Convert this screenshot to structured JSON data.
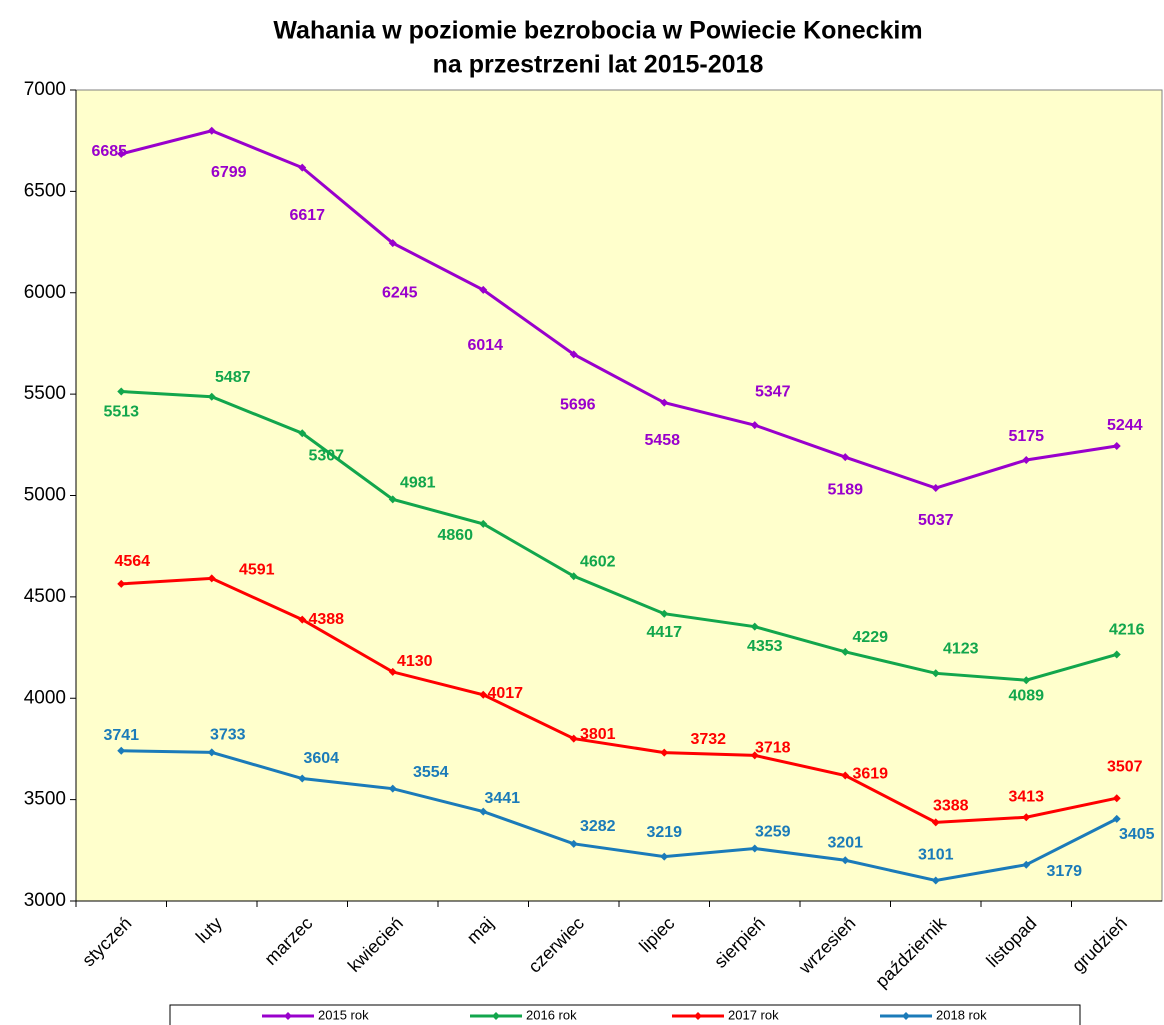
{
  "chart_data": {
    "type": "line",
    "title": [
      "Wahania w poziomie bezrobocia w Powiecie Koneckim",
      "na przestrzeni lat 2015-2018"
    ],
    "categories": [
      "styczeń",
      "luty",
      "marzec",
      "kwiecień",
      "maj",
      "czerwiec",
      "lipiec",
      "sierpień",
      "wrzesień",
      "październik",
      "listopad",
      "grudzień"
    ],
    "series": [
      {
        "name": "2015 rok",
        "color": "#9900cc",
        "values": [
          6685,
          6799,
          6617,
          6245,
          6014,
          5696,
          5458,
          5347,
          5189,
          5037,
          5175,
          5244
        ]
      },
      {
        "name": "2016 rok",
        "color": "#12a64c",
        "values": [
          5513,
          5487,
          5307,
          4981,
          4860,
          4602,
          4417,
          4353,
          4229,
          4123,
          4089,
          4216
        ]
      },
      {
        "name": "2017 rok",
        "color": "#ff0000",
        "values": [
          4564,
          4591,
          4388,
          4130,
          4017,
          3801,
          3732,
          3718,
          3619,
          3388,
          3413,
          3507
        ]
      },
      {
        "name": "2018 rok",
        "color": "#1b7bb9",
        "values": [
          3741,
          3733,
          3604,
          3554,
          3441,
          3282,
          3219,
          3259,
          3201,
          3101,
          3179,
          3405
        ]
      }
    ],
    "ylim": [
      3000,
      7000
    ],
    "yticks": [
      3000,
      3500,
      4000,
      4500,
      5000,
      5500,
      6000,
      6500,
      7000
    ],
    "legend": "bottom"
  }
}
